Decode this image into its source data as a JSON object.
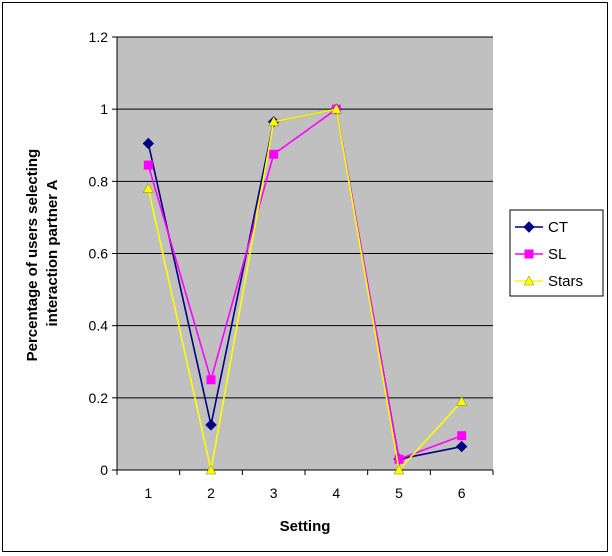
{
  "chart_data": {
    "type": "line",
    "title": "",
    "xlabel": "Setting",
    "ylabel": "Percentage of users selecting interaction partner A",
    "ylabel_lines": [
      "Percentage of users selecting",
      "interaction partner A"
    ],
    "categories": [
      "1",
      "2",
      "3",
      "4",
      "5",
      "6"
    ],
    "ylim": [
      0,
      1.2
    ],
    "yticks": [
      "0",
      "0.2",
      "0.4",
      "0.6",
      "0.8",
      "1",
      "1.2"
    ],
    "grid": true,
    "plot_background": "#c0c0c0",
    "legend_position": "right",
    "series": [
      {
        "name": "CT",
        "color": "#000080",
        "marker": "diamond",
        "values": [
          0.905,
          0.125,
          0.965,
          1.0,
          0.03,
          0.065
        ]
      },
      {
        "name": "SL",
        "color": "#ff00ff",
        "marker": "square",
        "values": [
          0.845,
          0.25,
          0.875,
          1.0,
          0.03,
          0.095
        ]
      },
      {
        "name": "Stars",
        "color": "#ffff00",
        "marker": "triangle",
        "values": [
          0.78,
          0.0,
          0.965,
          1.0,
          0.0,
          0.19
        ]
      }
    ]
  }
}
